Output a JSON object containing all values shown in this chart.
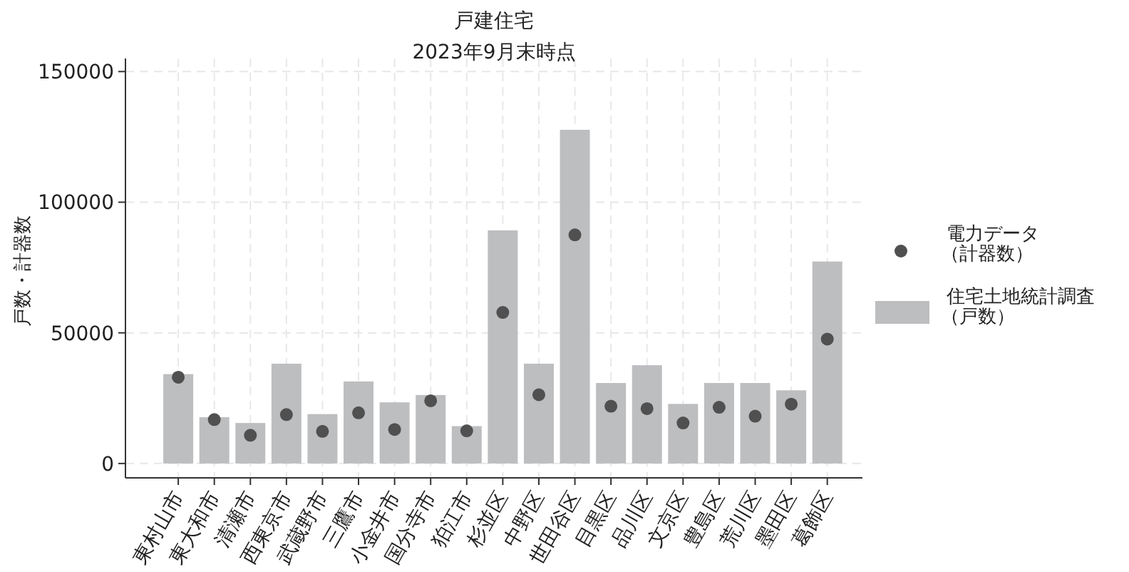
{
  "chart_data": {
    "type": "bar",
    "title": "戸建住宅",
    "subtitle": "2023年9月末時点",
    "ylabel": "戸数・計器数",
    "categories": [
      "東村山市",
      "東大和市",
      "清瀬市",
      "西東京市",
      "武蔵野市",
      "三鷹市",
      "小金井市",
      "国分寺市",
      "狛江市",
      "杉並区",
      "中野区",
      "世田谷区",
      "目黒区",
      "品川区",
      "文京区",
      "豊島区",
      "荒川区",
      "墨田区",
      "葛飾区"
    ],
    "series": [
      {
        "name": "電力データ（計器数）",
        "type": "scatter",
        "marker": "circle",
        "color": "#505050",
        "values": [
          33000,
          16800,
          10800,
          18700,
          12300,
          19400,
          13000,
          24000,
          12500,
          57800,
          26300,
          87500,
          21900,
          21000,
          15500,
          21500,
          18100,
          22700,
          47600
        ]
      },
      {
        "name": "住宅土地統計調査（戸数）",
        "color": "#bdbec0",
        "values": [
          34200,
          17700,
          15500,
          38200,
          18900,
          31400,
          23400,
          26200,
          14300,
          89200,
          38200,
          127700,
          30800,
          37600,
          22800,
          30800,
          30800,
          28000,
          77300
        ]
      }
    ],
    "ylim": [
      -5500,
      155000
    ],
    "yticks": [
      0,
      50000,
      100000,
      150000
    ],
    "grid": true,
    "legend": "right"
  }
}
